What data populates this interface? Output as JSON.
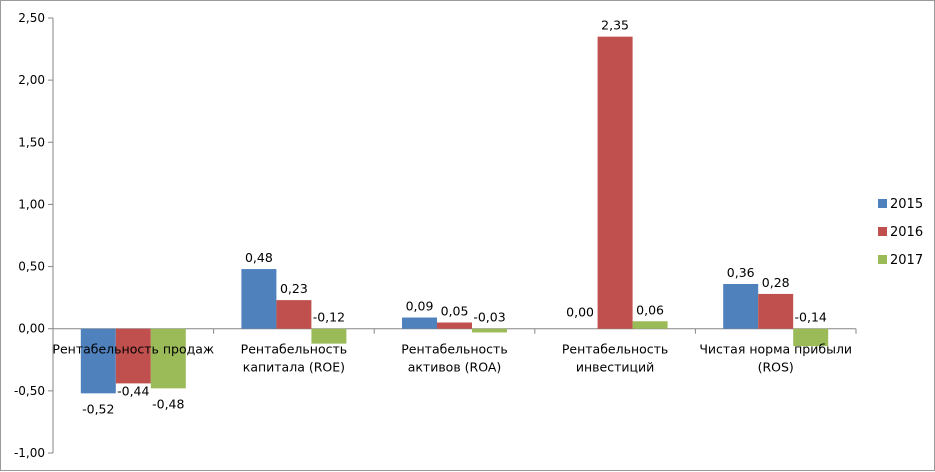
{
  "chart_data": {
    "type": "bar",
    "title": "",
    "xlabel": "",
    "ylabel": "",
    "ylim": [
      -1.0,
      2.5
    ],
    "yticks": [
      -1.0,
      -0.5,
      0.0,
      0.5,
      1.0,
      1.5,
      2.0,
      2.5
    ],
    "ytick_labels": [
      "-1,00",
      "-0,50",
      "0,00",
      "0,50",
      "1,00",
      "1,50",
      "2,00",
      "2,50"
    ],
    "grid": false,
    "legend_position": "right",
    "categories": [
      [
        "Рентабельность продаж"
      ],
      [
        "Рентабельность",
        "капитала (ROE)"
      ],
      [
        "Рентабельность",
        "активов (ROA)"
      ],
      [
        "Рентабельность",
        "инвестиций"
      ],
      [
        "Чистая норма прибыли",
        "(ROS)"
      ]
    ],
    "series": [
      {
        "name": "2015",
        "color": "#4F81BD",
        "values": [
          -0.52,
          0.48,
          0.09,
          0.0,
          0.36
        ],
        "labels": [
          "-0,52",
          "0,48",
          "0,09",
          "0,00",
          "0,36"
        ]
      },
      {
        "name": "2016",
        "color": "#C0504D",
        "values": [
          -0.44,
          0.23,
          0.05,
          2.35,
          0.28
        ],
        "labels": [
          "-0,44",
          "0,23",
          "0,05",
          "2,35",
          "0,28"
        ]
      },
      {
        "name": "2017",
        "color": "#9BBB59",
        "values": [
          -0.48,
          -0.12,
          -0.03,
          0.06,
          -0.14
        ],
        "labels": [
          "-0,48",
          "-0,12",
          "-0,03",
          "0,06",
          "-0,14"
        ]
      }
    ]
  }
}
